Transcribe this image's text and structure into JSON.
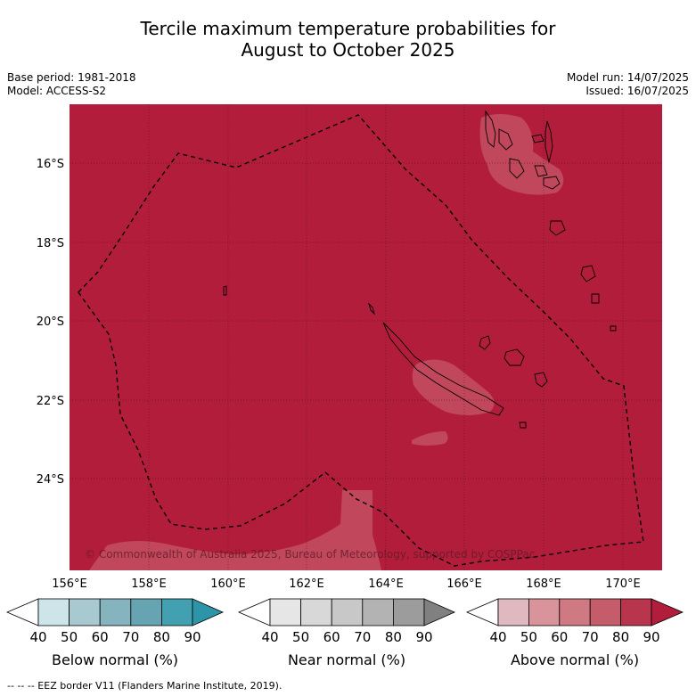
{
  "title": [
    "Tercile maximum temperature probabilities for",
    "August to October 2025"
  ],
  "base_period": "Base period: 1981-2018",
  "model": "Model: ACCESS-S2",
  "model_run": "Model run: 14/07/2025",
  "issued": "Issued: 16/07/2025",
  "lat_labels": [
    "16°S",
    "18°S",
    "20°S",
    "22°S",
    "24°S"
  ],
  "lon_labels": [
    "156°E",
    "158°E",
    "160°E",
    "162°E",
    "164°E",
    "166°E",
    "168°E",
    "170°E"
  ],
  "copyright": "© Commonwealth of Australia 2025, Bureau of Meteorology, supported by COSPPac",
  "colorbars": [
    {
      "label": "Below normal (%)",
      "ticks": [
        "40",
        "50",
        "60",
        "70",
        "80",
        "90"
      ],
      "colors": [
        "#ffffff",
        "#cde4e9",
        "#a7c9cf",
        "#86b4be",
        "#66a4b1",
        "#43a0b0",
        "#2e95a8"
      ]
    },
    {
      "label": "Near normal (%)",
      "ticks": [
        "40",
        "50",
        "60",
        "70",
        "80",
        "90"
      ],
      "colors": [
        "#ffffff",
        "#e6e6e6",
        "#d8d8d8",
        "#c8c8c8",
        "#b3b3b3",
        "#9c9c9c",
        "#808080"
      ]
    },
    {
      "label": "Above normal (%)",
      "ticks": [
        "40",
        "50",
        "60",
        "70",
        "80",
        "90"
      ],
      "colors": [
        "#ffffff",
        "#e0b9c0",
        "#d9939b",
        "#cf7a82",
        "#c45c69",
        "#b8354d",
        "#b21d3c"
      ]
    }
  ],
  "footer": "--  --  -- EEZ border V11 (Flanders Marine Institute, 2019).",
  "colors": {
    "above_normal_fill": "#b21d3c",
    "lighter_patch": "#c0475c"
  }
}
